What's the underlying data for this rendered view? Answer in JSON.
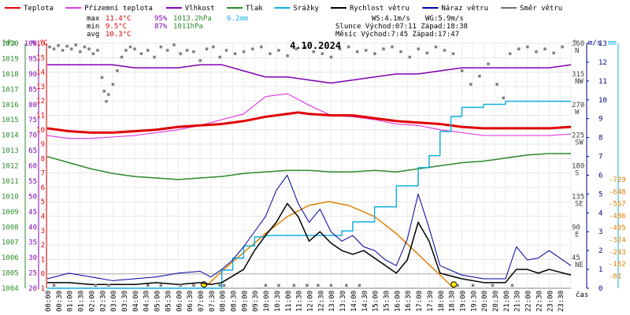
{
  "chart_data": {
    "type": "line",
    "title": "4.10.2024",
    "xlabel": "čas",
    "legend": [
      {
        "name": "Teplota",
        "color": "#e00000"
      },
      {
        "name": "Přízemní teplota",
        "color": "#e040e0"
      },
      {
        "name": "Vlhkost",
        "color": "#8000b0"
      },
      {
        "name": "Tlak",
        "color": "#2a8a2a"
      },
      {
        "name": "Srážky",
        "color": "#10b0e0"
      },
      {
        "name": "Rychlost větru",
        "color": "#000000"
      },
      {
        "name": "Náraz větru",
        "color": "#0000a0"
      },
      {
        "name": "Směr větru",
        "color": "#707070"
      }
    ],
    "sun_color": "#e08000",
    "stats": {
      "max_label": "max",
      "max_temp": "11.4°C",
      "max_hum": "95%",
      "max_press": "1013.2hPa",
      "max_rain": "6.2mm",
      "min_label": "min",
      "min_temp": "9.5°C",
      "min_hum": "87%",
      "min_press": "1011hPa",
      "avg_label": "avg",
      "avg_temp": "10.3°C",
      "ws": "WS:4.1m/s",
      "wg": "WG:5.9m/s",
      "sun": "Slunce Východ:07:11  Západ:18:38",
      "moon": "Měsíc  Východ:7:45  Západ:17:47"
    },
    "axes": {
      "hpa_title": "hPa",
      "pct_title": "%",
      "c_title": "°C",
      "deg_title": "°",
      "ms_title": "m/s",
      "mm_title": "mm",
      "hpa_ticks": [
        "1020",
        "1019",
        "1018",
        "1017",
        "1016",
        "1015",
        "1014",
        "1013",
        "1012",
        "1011",
        "1010",
        "1009",
        "1008",
        "1007",
        "1006",
        "1005",
        "1004"
      ],
      "pct_ticks": [
        "100",
        "95",
        "90",
        "85",
        "80",
        "75",
        "70",
        "65",
        "60",
        "55",
        "50",
        "45",
        "40",
        "35",
        "30",
        "25",
        "20"
      ],
      "c_ticks": [
        "16",
        "15",
        "14",
        "13",
        "12",
        "11",
        "10",
        "9",
        "8",
        "7",
        "6",
        "5",
        "4",
        "3",
        "2",
        "1",
        "0",
        "-1"
      ],
      "dir_ticks": [
        {
          "v": "360",
          "n": "N"
        },
        {
          "v": "315",
          "n": "NW"
        },
        {
          "v": "270",
          "n": "W"
        },
        {
          "v": "225",
          "n": "SW"
        },
        {
          "v": "180",
          "n": "S"
        },
        {
          "v": "135",
          "n": "SE"
        },
        {
          "v": "90",
          "n": "E"
        },
        {
          "v": "45",
          "n": "NE"
        }
      ],
      "ms_ticks": [
        "13",
        "12",
        "11",
        "10",
        "9",
        "8",
        "7",
        "6",
        "5",
        "4",
        "3",
        "2",
        "1",
        "0"
      ],
      "mm_ticks": [
        "-729",
        "-648",
        "-567",
        "-486",
        "-405",
        "-324",
        "-243",
        "-162",
        "-81"
      ],
      "x_ticks": [
        "00:00",
        "00:30",
        "01:00",
        "01:30",
        "02:00",
        "02:30",
        "03:00",
        "03:30",
        "04:00",
        "04:30",
        "05:00",
        "05:30",
        "06:00",
        "06:30",
        "07:00",
        "07:30",
        "08:00",
        "08:30",
        "09:00",
        "09:30",
        "10:00",
        "10:30",
        "11:00",
        "11:30",
        "12:00",
        "12:30",
        "13:00",
        "13:30",
        "14:00",
        "14:30",
        "15:00",
        "15:30",
        "16:00",
        "16:30",
        "17:00",
        "17:30",
        "18:00",
        "18:30",
        "19:00",
        "19:30",
        "20:00",
        "20:30",
        "21:00",
        "21:30",
        "22:00",
        "22:30",
        "23:00",
        "23:30"
      ]
    },
    "x_range_h": [
      0,
      24
    ],
    "temp_c": [
      [
        0,
        10.1
      ],
      [
        1,
        9.9
      ],
      [
        2,
        9.8
      ],
      [
        3,
        9.8
      ],
      [
        4,
        9.9
      ],
      [
        5,
        10.0
      ],
      [
        6,
        10.2
      ],
      [
        7,
        10.3
      ],
      [
        8,
        10.4
      ],
      [
        9,
        10.6
      ],
      [
        10,
        10.9
      ],
      [
        11,
        11.1
      ],
      [
        11.5,
        11.2
      ],
      [
        12,
        11.1
      ],
      [
        13,
        11.0
      ],
      [
        14,
        11.0
      ],
      [
        15,
        10.8
      ],
      [
        16,
        10.6
      ],
      [
        17,
        10.5
      ],
      [
        18,
        10.4
      ],
      [
        19,
        10.2
      ],
      [
        20,
        10.1
      ],
      [
        21,
        10.1
      ],
      [
        22,
        10.1
      ],
      [
        23,
        10.1
      ],
      [
        24,
        10.2
      ]
    ],
    "ground_temp_c": [
      [
        0,
        9.6
      ],
      [
        1,
        9.4
      ],
      [
        2,
        9.4
      ],
      [
        3,
        9.5
      ],
      [
        4,
        9.6
      ],
      [
        5,
        9.8
      ],
      [
        6,
        10.0
      ],
      [
        7,
        10.3
      ],
      [
        8,
        10.7
      ],
      [
        9,
        11.1
      ],
      [
        9.5,
        11.7
      ],
      [
        10,
        12.3
      ],
      [
        11,
        12.5
      ],
      [
        12,
        11.7
      ],
      [
        13,
        11.0
      ],
      [
        14,
        10.9
      ],
      [
        15,
        10.7
      ],
      [
        16,
        10.4
      ],
      [
        17,
        10.3
      ],
      [
        18,
        10.0
      ],
      [
        19,
        9.8
      ],
      [
        20,
        9.6
      ],
      [
        21,
        9.6
      ],
      [
        22,
        9.6
      ],
      [
        23,
        9.6
      ],
      [
        24,
        9.7
      ]
    ],
    "humidity_pct": [
      [
        0,
        93
      ],
      [
        1,
        93
      ],
      [
        2,
        93
      ],
      [
        3,
        93
      ],
      [
        4,
        92
      ],
      [
        5,
        92
      ],
      [
        6,
        92
      ],
      [
        7,
        93
      ],
      [
        8,
        93
      ],
      [
        9,
        91
      ],
      [
        10,
        89
      ],
      [
        11,
        89
      ],
      [
        12,
        88
      ],
      [
        13,
        87
      ],
      [
        14,
        88
      ],
      [
        15,
        89
      ],
      [
        16,
        90
      ],
      [
        17,
        90
      ],
      [
        18,
        91
      ],
      [
        19,
        92
      ],
      [
        20,
        92
      ],
      [
        21,
        92
      ],
      [
        22,
        92
      ],
      [
        23,
        92
      ],
      [
        24,
        93
      ]
    ],
    "pressure_hpa": [
      [
        0,
        1012.6
      ],
      [
        1,
        1012.2
      ],
      [
        2,
        1011.8
      ],
      [
        3,
        1011.5
      ],
      [
        4,
        1011.3
      ],
      [
        5,
        1011.2
      ],
      [
        6,
        1011.1
      ],
      [
        7,
        1011.2
      ],
      [
        8,
        1011.3
      ],
      [
        9,
        1011.5
      ],
      [
        10,
        1011.6
      ],
      [
        11,
        1011.7
      ],
      [
        12,
        1011.7
      ],
      [
        13,
        1011.6
      ],
      [
        14,
        1011.6
      ],
      [
        15,
        1011.7
      ],
      [
        16,
        1011.6
      ],
      [
        17,
        1011.8
      ],
      [
        18,
        1012.0
      ],
      [
        19,
        1012.2
      ],
      [
        20,
        1012.3
      ],
      [
        21,
        1012.5
      ],
      [
        22,
        1012.7
      ],
      [
        23,
        1012.8
      ],
      [
        24,
        1012.8
      ]
    ],
    "rain_mm": [
      [
        0,
        0
      ],
      [
        7.5,
        0
      ],
      [
        8,
        0.6
      ],
      [
        8.5,
        1.0
      ],
      [
        9,
        1.4
      ],
      [
        9.5,
        1.7
      ],
      [
        10,
        1.75
      ],
      [
        11,
        1.75
      ],
      [
        12,
        1.75
      ],
      [
        13,
        1.75
      ],
      [
        13.5,
        1.9
      ],
      [
        14,
        2.2
      ],
      [
        15,
        2.7
      ],
      [
        16,
        3.4
      ],
      [
        17,
        4.0
      ],
      [
        17.5,
        4.4
      ],
      [
        18,
        5.2
      ],
      [
        18.5,
        5.7
      ],
      [
        19,
        6.0
      ],
      [
        20,
        6.1
      ],
      [
        21,
        6.2
      ],
      [
        22,
        6.2
      ],
      [
        24,
        6.2
      ]
    ],
    "wind_speed_ms": [
      [
        0,
        0.3
      ],
      [
        1,
        0.3
      ],
      [
        2,
        0.2
      ],
      [
        3,
        0.2
      ],
      [
        4,
        0.2
      ],
      [
        5,
        0.3
      ],
      [
        6,
        0.2
      ],
      [
        7,
        0.3
      ],
      [
        7.5,
        0.2
      ],
      [
        8,
        0.3
      ],
      [
        9,
        1.0
      ],
      [
        9.5,
        2.0
      ],
      [
        10,
        2.8
      ],
      [
        10.5,
        3.5
      ],
      [
        11,
        4.5
      ],
      [
        11.5,
        3.8
      ],
      [
        12,
        2.5
      ],
      [
        12.5,
        3.0
      ],
      [
        13,
        2.4
      ],
      [
        13.5,
        2.0
      ],
      [
        14,
        1.8
      ],
      [
        14.5,
        2.0
      ],
      [
        15,
        1.6
      ],
      [
        15.5,
        1.2
      ],
      [
        16,
        0.8
      ],
      [
        16.5,
        1.5
      ],
      [
        17,
        3.5
      ],
      [
        17.5,
        2.5
      ],
      [
        18,
        0.8
      ],
      [
        19,
        0.5
      ],
      [
        20,
        0.3
      ],
      [
        21,
        0.3
      ],
      [
        21.5,
        1.0
      ],
      [
        22,
        1.0
      ],
      [
        22.5,
        0.8
      ],
      [
        23,
        1.0
      ],
      [
        24,
        0.7
      ]
    ],
    "wind_gust_ms": [
      [
        0,
        0.5
      ],
      [
        1,
        0.8
      ],
      [
        2,
        0.6
      ],
      [
        3,
        0.4
      ],
      [
        4,
        0.5
      ],
      [
        5,
        0.6
      ],
      [
        6,
        0.8
      ],
      [
        7,
        0.9
      ],
      [
        7.5,
        0.6
      ],
      [
        8,
        1.0
      ],
      [
        8.5,
        1.5
      ],
      [
        9,
        2.2
      ],
      [
        9.5,
        3.0
      ],
      [
        10,
        3.8
      ],
      [
        10.5,
        5.2
      ],
      [
        11,
        6.0
      ],
      [
        11.5,
        4.5
      ],
      [
        12,
        3.5
      ],
      [
        12.5,
        4.2
      ],
      [
        13,
        3.0
      ],
      [
        13.5,
        2.5
      ],
      [
        14,
        2.8
      ],
      [
        14.5,
        2.2
      ],
      [
        15,
        2.0
      ],
      [
        15.5,
        1.5
      ],
      [
        16,
        1.2
      ],
      [
        16.5,
        2.6
      ],
      [
        17,
        5.0
      ],
      [
        17.5,
        3.2
      ],
      [
        18,
        1.2
      ],
      [
        19,
        0.7
      ],
      [
        20,
        0.5
      ],
      [
        21,
        0.5
      ],
      [
        21.5,
        2.2
      ],
      [
        22,
        1.5
      ],
      [
        22.5,
        1.6
      ],
      [
        23,
        2.0
      ],
      [
        24,
        1.2
      ]
    ],
    "wind_dir_deg": [
      [
        0.1,
        355
      ],
      [
        0.3,
        352
      ],
      [
        0.5,
        357
      ],
      [
        0.7,
        350
      ],
      [
        0.9,
        356
      ],
      [
        1.1,
        352
      ],
      [
        1.3,
        358
      ],
      [
        1.5,
        348
      ],
      [
        1.7,
        355
      ],
      [
        1.9,
        352
      ],
      [
        2.1,
        345
      ],
      [
        2.3,
        350
      ],
      [
        2.5,
        310
      ],
      [
        2.6,
        290
      ],
      [
        2.7,
        275
      ],
      [
        2.8,
        285
      ],
      [
        3.0,
        300
      ],
      [
        3.2,
        320
      ],
      [
        3.4,
        340
      ],
      [
        3.6,
        350
      ],
      [
        3.8,
        355
      ],
      [
        4.0,
        352
      ],
      [
        4.3,
        345
      ],
      [
        4.6,
        350
      ],
      [
        4.9,
        340
      ],
      [
        5.2,
        355
      ],
      [
        5.5,
        350
      ],
      [
        5.8,
        358
      ],
      [
        6.1,
        345
      ],
      [
        6.4,
        350
      ],
      [
        6.7,
        348
      ],
      [
        7.0,
        335
      ],
      [
        7.3,
        352
      ],
      [
        7.6,
        355
      ],
      [
        7.9,
        340
      ],
      [
        8.2,
        350
      ],
      [
        8.6,
        345
      ],
      [
        9.0,
        348
      ],
      [
        9.4,
        352
      ],
      [
        9.8,
        355
      ],
      [
        10.2,
        345
      ],
      [
        10.6,
        350
      ],
      [
        11.0,
        342
      ],
      [
        11.4,
        352
      ],
      [
        11.8,
        355
      ],
      [
        12.2,
        348
      ],
      [
        12.6,
        345
      ],
      [
        13.0,
        340
      ],
      [
        13.4,
        352
      ],
      [
        13.8,
        355
      ],
      [
        14.2,
        348
      ],
      [
        14.6,
        350
      ],
      [
        15.0,
        345
      ],
      [
        15.4,
        352
      ],
      [
        15.8,
        355
      ],
      [
        16.2,
        348
      ],
      [
        16.6,
        340
      ],
      [
        17.0,
        352
      ],
      [
        17.4,
        346
      ],
      [
        17.8,
        355
      ],
      [
        18.2,
        350
      ],
      [
        18.6,
        345
      ],
      [
        19.0,
        320
      ],
      [
        19.4,
        300
      ],
      [
        19.8,
        312
      ],
      [
        20.2,
        330
      ],
      [
        20.6,
        300
      ],
      [
        20.9,
        280
      ],
      [
        21.2,
        345
      ],
      [
        21.6,
        352
      ],
      [
        22.0,
        355
      ],
      [
        22.4,
        348
      ],
      [
        22.8,
        352
      ],
      [
        23.2,
        346
      ],
      [
        23.6,
        355
      ]
    ],
    "calm_points_h": [
      0.3,
      2.2,
      2.8,
      4.6,
      5.2,
      6.1,
      6.7,
      7.9,
      8.1,
      10.0,
      10.6,
      11.3,
      11.9,
      12.4,
      13.0,
      13.7,
      14.3,
      18.8,
      19.5,
      20.4,
      21.3
    ],
    "sun_elevation": [
      [
        7.18,
        0
      ],
      [
        8,
        0.9
      ],
      [
        9,
        1.9
      ],
      [
        10,
        2.9
      ],
      [
        11,
        3.8
      ],
      [
        12,
        4.4
      ],
      [
        12.9,
        4.6
      ],
      [
        13.8,
        4.4
      ],
      [
        15,
        3.8
      ],
      [
        16,
        2.9
      ],
      [
        17,
        1.8
      ],
      [
        18,
        0.7
      ],
      [
        18.63,
        0
      ]
    ],
    "sun_marks_h": [
      7.18,
      18.63
    ]
  }
}
